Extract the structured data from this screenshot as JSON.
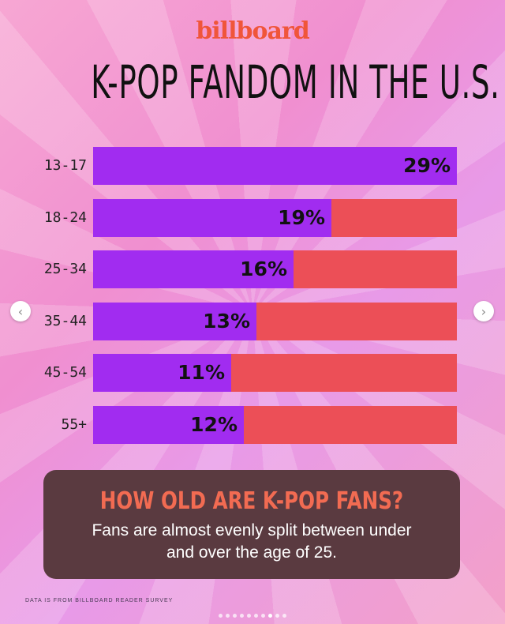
{
  "brand": {
    "logo_text": "billboard",
    "color": "#f0553a"
  },
  "headline": "K-POP FANDOM IN THE U.S.",
  "colors": {
    "fill": "#a12cf0",
    "rest": "#ec4f57",
    "callout_title": "#f26b52"
  },
  "chart_data": {
    "type": "bar",
    "orientation": "horizontal",
    "stacked_to_100": false,
    "categories": [
      "13-17",
      "18-24",
      "25-34",
      "35-44",
      "45-54",
      "55+"
    ],
    "values": [
      29,
      19,
      16,
      13,
      11,
      12
    ],
    "value_labels": [
      "29%",
      "19%",
      "16%",
      "13%",
      "11%",
      "12%"
    ],
    "xlim": [
      0,
      29
    ]
  },
  "callout": {
    "title": "HOW OLD ARE K-POP FANS?",
    "body": "Fans are almost evenly split between under and over the age of 25."
  },
  "footnote": "DATA IS FROM BILLBOARD READER SURVEY",
  "carousel": {
    "prev_label": "‹",
    "next_label": "›",
    "page_count": 10,
    "active_index": 7
  }
}
